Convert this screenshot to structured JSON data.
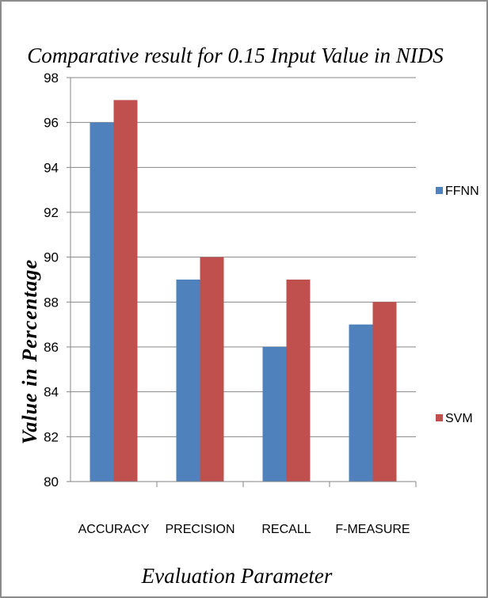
{
  "chart_data": {
    "type": "bar",
    "title": "Comparative result for 0.15 Input Value in NIDS",
    "xlabel": "Evaluation Parameter",
    "ylabel": "Value in Percentage",
    "categories": [
      "ACCURACY",
      "PRECISION",
      "RECALL",
      "F-MEASURE"
    ],
    "series": [
      {
        "name": "FFNN",
        "values": [
          96,
          89,
          86,
          87
        ],
        "color": "#4f81bd"
      },
      {
        "name": "SVM",
        "values": [
          97,
          90,
          89,
          88
        ],
        "color": "#c0504d"
      }
    ],
    "ylim": [
      80,
      98
    ],
    "yticks": [
      "80",
      "82",
      "84",
      "86",
      "88",
      "90",
      "92",
      "94",
      "96",
      "98"
    ],
    "grid": true,
    "gridColor": "#868686",
    "legend": "right"
  }
}
